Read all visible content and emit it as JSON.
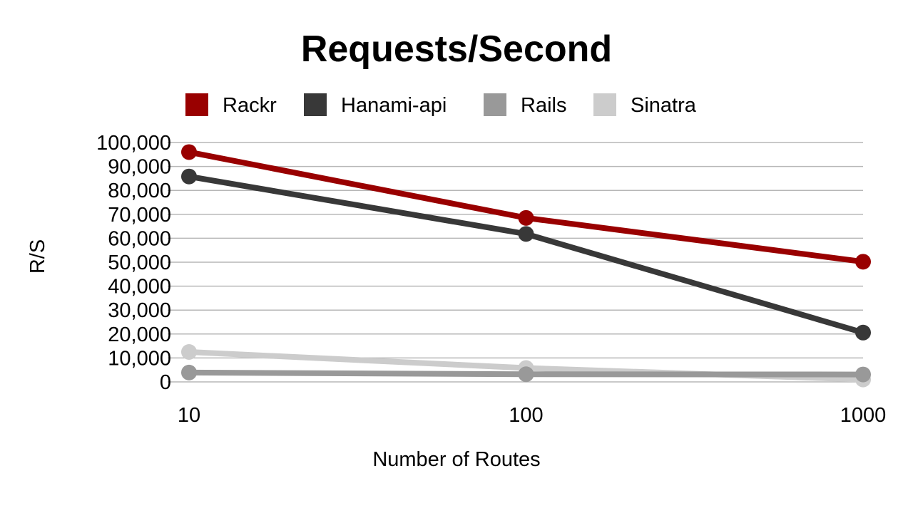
{
  "chart_data": {
    "type": "line",
    "title": "Requests/Second",
    "xlabel": "Number of Routes",
    "ylabel": "R/S",
    "x_scale": "log",
    "x": [
      10,
      100,
      1000
    ],
    "x_tick_labels": [
      "10",
      "100",
      "1000"
    ],
    "ylim": [
      0,
      100000
    ],
    "y_ticks": [
      0,
      10000,
      20000,
      30000,
      40000,
      50000,
      60000,
      70000,
      80000,
      90000,
      100000
    ],
    "y_tick_labels": [
      "0",
      "10,000",
      "20,000",
      "30,000",
      "40,000",
      "50,000",
      "60,000",
      "70,000",
      "80,000",
      "90,000",
      "100,000"
    ],
    "grid": true,
    "legend_position": "top",
    "series": [
      {
        "name": "Rackr",
        "color": "#990000",
        "values": [
          96000,
          68500,
          50200
        ]
      },
      {
        "name": "Hanami-api",
        "color": "#383838",
        "values": [
          85800,
          61800,
          20600
        ]
      },
      {
        "name": "Rails",
        "color": "#999999",
        "values": [
          3900,
          3200,
          3100
        ]
      },
      {
        "name": "Sinatra",
        "color": "#cccccc",
        "values": [
          12500,
          5800,
          1000
        ]
      }
    ]
  }
}
